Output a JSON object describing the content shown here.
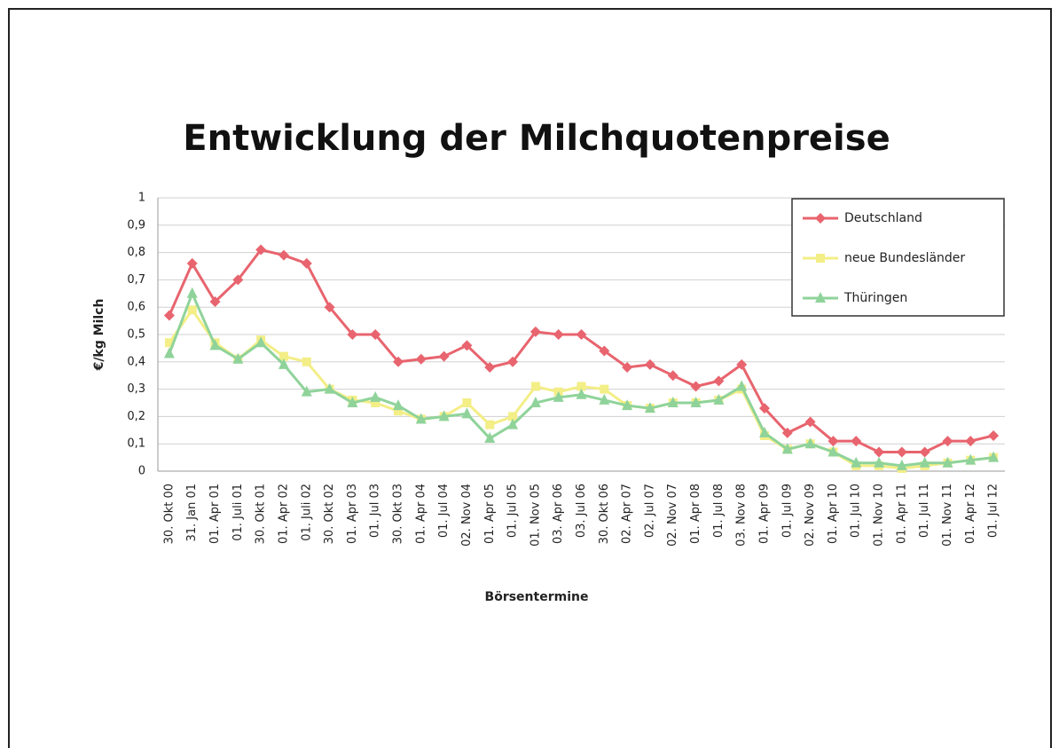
{
  "chart_data": {
    "type": "line",
    "title": "Entwicklung der Milchquotenpreise",
    "x_label": "Börsentermine",
    "y_label": "€/kg Milch",
    "categories": [
      "30. Okt 00",
      "31. Jan 01",
      "01. Apr 01",
      "01. Juli 01",
      "30. Okt 01",
      "01. Apr 02",
      "01. Juli 02",
      "30. Okt 02",
      "01. Apr 03",
      "01. Jul 03",
      "30. Okt 03",
      "01. Apr 04",
      "01. Jul 04",
      "02. Nov 04",
      "01. Apr 05",
      "01. Jul 05",
      "01. Nov 05",
      "03. Apr 06",
      "03. Jul 06",
      "30. Okt 06",
      "02. Apr 07",
      "02. Jul 07",
      "02. Nov 07",
      "01. Apr 08",
      "01. Jul 08",
      "03. Nov 08",
      "01. Apr 09",
      "01. Jul 09",
      "02. Nov 09",
      "01. Apr 10",
      "01. Jul 10",
      "01. Nov 10",
      "01. Apr 11",
      "01. Jul 11",
      "01. Nov 11",
      "01. Apr 12",
      "01. Jul 12"
    ],
    "series": [
      {
        "name": "Deutschland",
        "color": "#e8646e",
        "marker": "diamond",
        "values": [
          0.57,
          0.76,
          0.62,
          0.7,
          0.81,
          0.79,
          0.76,
          0.6,
          0.5,
          0.5,
          0.4,
          0.41,
          0.42,
          0.46,
          0.38,
          0.4,
          0.51,
          0.5,
          0.5,
          0.44,
          0.38,
          0.39,
          0.35,
          0.31,
          0.33,
          0.39,
          0.23,
          0.14,
          0.18,
          0.11,
          0.11,
          0.07,
          0.07,
          0.07,
          0.11,
          0.11,
          0.13
        ]
      },
      {
        "name": "neue Bundesländer",
        "color": "#f3ee86",
        "marker": "square",
        "values": [
          0.47,
          0.59,
          0.47,
          0.41,
          0.48,
          0.42,
          0.4,
          0.3,
          0.26,
          0.25,
          0.22,
          0.19,
          0.2,
          0.25,
          0.17,
          0.2,
          0.31,
          0.29,
          0.31,
          0.3,
          0.24,
          0.23,
          0.25,
          0.25,
          0.26,
          0.3,
          0.13,
          0.08,
          0.1,
          0.07,
          0.02,
          0.02,
          0.01,
          0.02,
          0.03,
          0.04,
          0.05
        ]
      },
      {
        "name": "Thüringen",
        "color": "#8fd39a",
        "marker": "triangle",
        "values": [
          0.43,
          0.65,
          0.46,
          0.41,
          0.47,
          0.39,
          0.29,
          0.3,
          0.25,
          0.27,
          0.24,
          0.19,
          0.2,
          0.21,
          0.12,
          0.17,
          0.25,
          0.27,
          0.28,
          0.26,
          0.24,
          0.23,
          0.25,
          0.25,
          0.26,
          0.31,
          0.14,
          0.08,
          0.1,
          0.07,
          0.03,
          0.03,
          0.02,
          0.03,
          0.03,
          0.04,
          0.05
        ]
      }
    ],
    "ylim": [
      0,
      1
    ],
    "yticks": [
      0,
      {
        "value": 0.1,
        "label": "0,1"
      },
      {
        "value": 0.2,
        "label": "0,2"
      },
      {
        "value": 0.3,
        "label": "0,3"
      },
      {
        "value": 0.4,
        "label": "0,4"
      },
      {
        "value": 0.5,
        "label": "0,5"
      },
      {
        "value": 0.6,
        "label": "0,6"
      },
      {
        "value": 0.7,
        "label": "0,7"
      },
      {
        "value": 0.8,
        "label": "0,8"
      },
      {
        "value": 0.9,
        "label": "0,9"
      },
      1
    ],
    "grid": true,
    "legend": "upper right"
  }
}
